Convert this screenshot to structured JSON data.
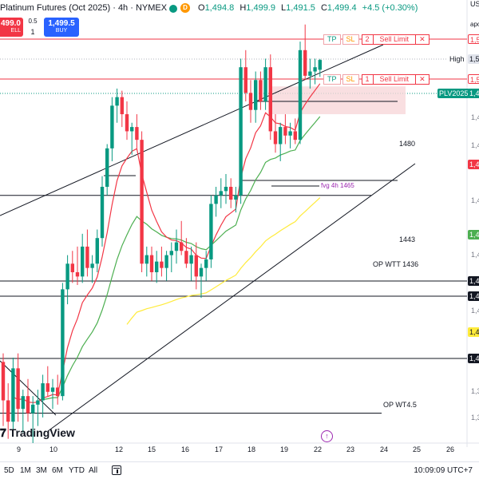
{
  "header": {
    "title": "Platinum Futures (Oct 2025) · 4h · NYMEX",
    "d_badge": "D",
    "ohlc": [
      {
        "k": "O",
        "v": "1,494.8"
      },
      {
        "k": "H",
        "v": "1,499.9"
      },
      {
        "k": "L",
        "v": "1,491.5"
      },
      {
        "k": "C",
        "v": "1,499.4"
      },
      {
        "k": "",
        "v": "+4.5 (+0.30%)"
      }
    ]
  },
  "trade": {
    "sell_price": "499.0",
    "sell_label": "ELL",
    "spread": "0.5",
    "quantity": "1",
    "buy_price": "1,499.5",
    "buy_label": "BUY"
  },
  "orders": [
    {
      "tp": "TP",
      "sl": "SL",
      "num": "2",
      "label": "Sell Limit",
      "close": "✕",
      "axis": "1,5"
    },
    {
      "tp": "TP",
      "sl": "SL",
      "num": "1",
      "label": "Sell Limit",
      "close": "✕",
      "axis": "1,5"
    }
  ],
  "levels": [
    {
      "label": "1480",
      "price": 1480
    },
    {
      "label": "1443",
      "price": 1443
    },
    {
      "label": "OP WTT 1436",
      "price": 1436
    },
    {
      "label": "OP WT4.5",
      "price": 1334
    }
  ],
  "fvg_label": "fvg 4h 1465",
  "axis": {
    "top_text": "US",
    "top_text2": "apo",
    "high_label": "High",
    "high_value": "1,5",
    "symbol_tag": "PLV2025",
    "symbol_value": "1,4",
    "red_tag": "1,4",
    "green_tag": "1,4",
    "black_tag_1": "1,4",
    "black_tag_2": "1,4",
    "black_tag_3": "1,4",
    "yellow_tag": "1,4",
    "numbers": [
      "1,4",
      "1,4",
      "1,4",
      "1,4",
      "1,4",
      "1,3",
      "1,3"
    ]
  },
  "time_axis": [
    "9",
    "10",
    "12",
    "15",
    "16",
    "17",
    "18",
    "19",
    "22",
    "23",
    "24",
    "25",
    "26"
  ],
  "bottom": {
    "ranges": [
      "5D",
      "1M",
      "3M",
      "6M",
      "YTD",
      "All"
    ],
    "clock": "10:09:09 UTC+7"
  },
  "branding": {
    "logo_text": "TradingView"
  },
  "colors": {
    "bull": "#089981",
    "bear": "#f23645",
    "ema_fast": "#f23645",
    "ema_mid": "#4caf50",
    "ema_slow": "#ffeb3b",
    "order_line": "#f23645",
    "fvg_zone": "#f8d7da",
    "buy": "#2962ff"
  },
  "chart_data": {
    "type": "candlestick",
    "title": "Platinum Futures (Oct 2025) · 4h · NYMEX",
    "x_ticks": [
      "9",
      "10",
      "12",
      "15",
      "16",
      "17",
      "18",
      "19",
      "22",
      "23",
      "24",
      "25",
      "26"
    ],
    "ylim": [
      1320,
      1520
    ],
    "candles": [
      [
        1358,
        1362,
        1328,
        1340
      ],
      [
        1340,
        1348,
        1322,
        1330
      ],
      [
        1330,
        1360,
        1326,
        1355
      ],
      [
        1355,
        1362,
        1330,
        1336
      ],
      [
        1336,
        1345,
        1325,
        1342
      ],
      [
        1342,
        1350,
        1330,
        1334
      ],
      [
        1334,
        1342,
        1320,
        1338
      ],
      [
        1338,
        1345,
        1328,
        1340
      ],
      [
        1340,
        1352,
        1332,
        1348
      ],
      [
        1348,
        1356,
        1342,
        1344
      ],
      [
        1344,
        1350,
        1336,
        1346
      ],
      [
        1346,
        1352,
        1338,
        1342
      ],
      [
        1342,
        1395,
        1340,
        1392
      ],
      [
        1392,
        1408,
        1385,
        1404
      ],
      [
        1404,
        1410,
        1395,
        1400
      ],
      [
        1400,
        1412,
        1394,
        1398
      ],
      [
        1398,
        1418,
        1395,
        1412
      ],
      [
        1412,
        1420,
        1398,
        1402
      ],
      [
        1402,
        1408,
        1395,
        1404
      ],
      [
        1404,
        1420,
        1400,
        1416
      ],
      [
        1416,
        1445,
        1412,
        1440
      ],
      [
        1440,
        1460,
        1436,
        1458
      ],
      [
        1458,
        1482,
        1452,
        1478
      ],
      [
        1478,
        1486,
        1470,
        1482
      ],
      [
        1482,
        1485,
        1468,
        1474
      ],
      [
        1474,
        1480,
        1462,
        1466
      ],
      [
        1466,
        1470,
        1455,
        1468
      ],
      [
        1468,
        1474,
        1458,
        1462
      ],
      [
        1462,
        1466,
        1400,
        1404
      ],
      [
        1404,
        1412,
        1398,
        1408
      ],
      [
        1408,
        1412,
        1396,
        1400
      ],
      [
        1400,
        1410,
        1395,
        1405
      ],
      [
        1405,
        1412,
        1398,
        1402
      ],
      [
        1402,
        1410,
        1396,
        1408
      ],
      [
        1408,
        1414,
        1400,
        1410
      ],
      [
        1410,
        1420,
        1404,
        1414
      ],
      [
        1414,
        1424,
        1408,
        1410
      ],
      [
        1410,
        1416,
        1402,
        1404
      ],
      [
        1404,
        1412,
        1396,
        1408
      ],
      [
        1408,
        1414,
        1392,
        1398
      ],
      [
        1398,
        1404,
        1388,
        1402
      ],
      [
        1402,
        1410,
        1396,
        1406
      ],
      [
        1406,
        1436,
        1402,
        1432
      ],
      [
        1432,
        1440,
        1426,
        1436
      ],
      [
        1436,
        1444,
        1430,
        1438
      ],
      [
        1438,
        1446,
        1432,
        1440
      ],
      [
        1440,
        1444,
        1430,
        1434
      ],
      [
        1434,
        1440,
        1428,
        1436
      ],
      [
        1436,
        1500,
        1432,
        1496
      ],
      [
        1496,
        1504,
        1480,
        1484
      ],
      [
        1484,
        1490,
        1470,
        1476
      ],
      [
        1476,
        1494,
        1470,
        1490
      ],
      [
        1490,
        1494,
        1476,
        1480
      ],
      [
        1480,
        1500,
        1476,
        1496
      ],
      [
        1496,
        1502,
        1462,
        1466
      ],
      [
        1466,
        1474,
        1456,
        1460
      ],
      [
        1460,
        1470,
        1452,
        1468
      ],
      [
        1468,
        1474,
        1460,
        1464
      ],
      [
        1464,
        1470,
        1458,
        1466
      ],
      [
        1466,
        1472,
        1460,
        1462
      ],
      [
        1462,
        1508,
        1460,
        1504
      ],
      [
        1504,
        1516,
        1490,
        1492
      ],
      [
        1492,
        1500,
        1486,
        1494
      ],
      [
        1494,
        1500,
        1488,
        1496
      ],
      [
        1494.8,
        1499.9,
        1491.5,
        1499.4
      ]
    ]
  }
}
